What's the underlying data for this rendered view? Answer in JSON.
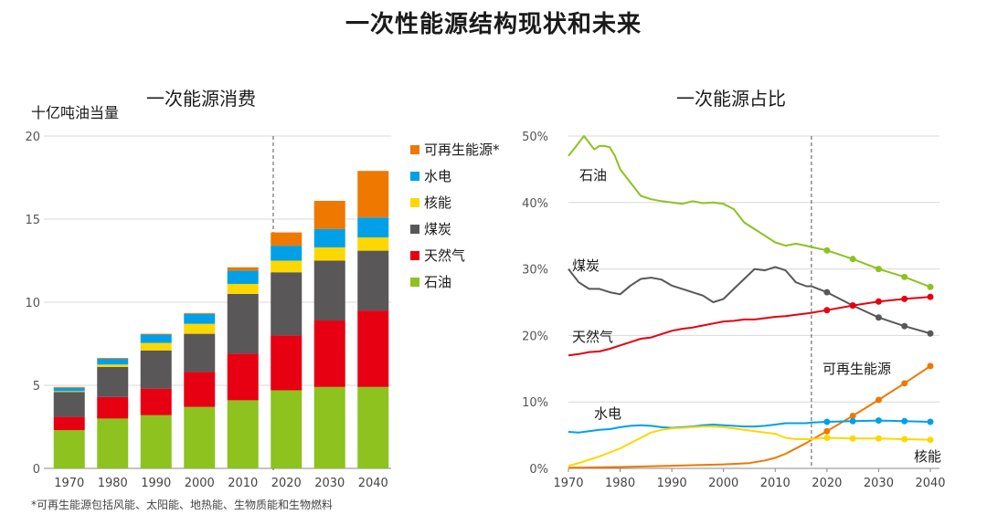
{
  "page": {
    "title": "一次性能源结构现状和未来"
  },
  "chart_data": [
    {
      "type": "bar",
      "stacked": true,
      "title": "一次能源消费",
      "ylabel": "十亿吨油当量",
      "ylim": [
        0,
        20
      ],
      "yticks": [
        "0",
        "5",
        "10",
        "15",
        "20"
      ],
      "categories": [
        "1970",
        "1980",
        "1990",
        "2000",
        "2010",
        "2020",
        "2030",
        "2040"
      ],
      "projection_start": "2017",
      "grid": true,
      "legend_position": "right",
      "footnote": "*可再生能源包括风能、太阳能、地热能、生物质能和生物燃料",
      "series": [
        {
          "name": "石油",
          "color": "#8dc21f",
          "values": [
            2.3,
            3.0,
            3.2,
            3.7,
            4.1,
            4.7,
            4.9,
            4.9
          ]
        },
        {
          "name": "天然气",
          "color": "#e60012",
          "values": [
            0.8,
            1.3,
            1.6,
            2.1,
            2.8,
            3.3,
            4.0,
            4.6
          ]
        },
        {
          "name": "煤炭",
          "color": "#595757",
          "values": [
            1.5,
            1.8,
            2.3,
            2.3,
            3.6,
            3.8,
            3.6,
            3.6
          ]
        },
        {
          "name": "核能",
          "color": "#fcd800",
          "values": [
            0.05,
            0.15,
            0.45,
            0.6,
            0.6,
            0.7,
            0.8,
            0.8
          ]
        },
        {
          "name": "水电",
          "color": "#00a0e9",
          "values": [
            0.2,
            0.35,
            0.5,
            0.6,
            0.8,
            0.9,
            1.1,
            1.2
          ]
        },
        {
          "name": "可再生能源*",
          "color": "#ee7800",
          "values": [
            0.05,
            0.05,
            0.05,
            0.05,
            0.2,
            0.8,
            1.7,
            2.8
          ]
        }
      ],
      "legend_order": [
        "可再生能源*",
        "水电",
        "核能",
        "煤炭",
        "天然气",
        "石油"
      ]
    },
    {
      "type": "line",
      "title": "一次能源占比",
      "ylim": [
        0,
        50
      ],
      "yticks": [
        "0%",
        "10%",
        "20%",
        "30%",
        "40%",
        "50%"
      ],
      "xticks": [
        "1970",
        "1980",
        "1990",
        "2000",
        "2010",
        "2020",
        "2030",
        "2040"
      ],
      "xlim": [
        1970,
        2040
      ],
      "projection_start": "2017",
      "grid": true,
      "marker_years": [
        2020,
        2025,
        2030,
        2035,
        2040
      ],
      "series": [
        {
          "name": "石油",
          "color": "#8dc21f",
          "label_pos": "left-top",
          "x": [
            1970,
            1971,
            1972,
            1973,
            1974,
            1975,
            1976,
            1977,
            1978,
            1979,
            1980,
            1982,
            1984,
            1986,
            1988,
            1990,
            1992,
            1994,
            1996,
            1998,
            2000,
            2002,
            2004,
            2006,
            2008,
            2010,
            2012,
            2014,
            2016,
            2017,
            2020,
            2025,
            2030,
            2035,
            2040
          ],
          "y": [
            47,
            48,
            49,
            50,
            49,
            48,
            48.5,
            48.5,
            48.3,
            47,
            45,
            43,
            41,
            40.5,
            40.2,
            40,
            39.8,
            40.2,
            39.9,
            40,
            39.8,
            39,
            37,
            36,
            35,
            34,
            33.5,
            33.8,
            33.5,
            33.3,
            32.8,
            31.5,
            30.0,
            28.8,
            27.3
          ]
        },
        {
          "name": "煤炭",
          "color": "#595757",
          "label_pos": "left-mid",
          "x": [
            1970,
            1972,
            1974,
            1976,
            1978,
            1980,
            1982,
            1984,
            1986,
            1988,
            1990,
            1992,
            1994,
            1996,
            1998,
            2000,
            2002,
            2004,
            2006,
            2008,
            2010,
            2012,
            2014,
            2016,
            2017,
            2020,
            2025,
            2030,
            2035,
            2040
          ],
          "y": [
            30,
            28,
            27,
            27,
            26.5,
            26.2,
            27.5,
            28.5,
            28.7,
            28.4,
            27.5,
            27,
            26.5,
            26,
            25,
            25.5,
            27,
            28.5,
            30,
            29.8,
            30.3,
            29.8,
            28,
            27.4,
            27.4,
            26.5,
            24.5,
            22.7,
            21.4,
            20.3
          ]
        },
        {
          "name": "天然气",
          "color": "#e60012",
          "label_pos": "left-low",
          "x": [
            1970,
            1972,
            1974,
            1976,
            1978,
            1980,
            1982,
            1984,
            1986,
            1988,
            1990,
            1992,
            1994,
            1996,
            1998,
            2000,
            2002,
            2004,
            2006,
            2008,
            2010,
            2012,
            2014,
            2016,
            2017,
            2020,
            2025,
            2030,
            2035,
            2040
          ],
          "y": [
            17,
            17.2,
            17.5,
            17.6,
            18,
            18.5,
            19,
            19.5,
            19.7,
            20.2,
            20.7,
            21,
            21.2,
            21.5,
            21.8,
            22.1,
            22.2,
            22.4,
            22.4,
            22.6,
            22.8,
            22.9,
            23.1,
            23.3,
            23.4,
            23.8,
            24.5,
            25.1,
            25.5,
            25.8
          ]
        },
        {
          "name": "可再生能源",
          "color": "#ee7800",
          "label_pos": "right-high",
          "x": [
            1970,
            1980,
            1990,
            2000,
            2005,
            2008,
            2010,
            2012,
            2014,
            2016,
            2017,
            2020,
            2025,
            2030,
            2035,
            2040
          ],
          "y": [
            0.1,
            0.2,
            0.4,
            0.6,
            0.8,
            1.2,
            1.6,
            2.2,
            3,
            3.8,
            4.3,
            5.6,
            7.9,
            10.3,
            12.8,
            15.4
          ]
        },
        {
          "name": "水电",
          "color": "#00a0e9",
          "label_pos": "left-high",
          "x": [
            1970,
            1972,
            1974,
            1976,
            1978,
            1980,
            1982,
            1984,
            1986,
            1988,
            1990,
            1992,
            1994,
            1996,
            1998,
            2000,
            2002,
            2004,
            2006,
            2008,
            2010,
            2012,
            2014,
            2016,
            2017,
            2020,
            2025,
            2030,
            2035,
            2040
          ],
          "y": [
            5.5,
            5.4,
            5.6,
            5.8,
            5.9,
            6.2,
            6.4,
            6.5,
            6.4,
            6.2,
            6.1,
            6.2,
            6.3,
            6.5,
            6.6,
            6.5,
            6.4,
            6.3,
            6.3,
            6.4,
            6.6,
            6.8,
            6.8,
            6.8,
            6.9,
            7.0,
            7.1,
            7.2,
            7.1,
            7.0
          ]
        },
        {
          "name": "核能",
          "color": "#fcd800",
          "label_pos": "right-low",
          "x": [
            1970,
            1972,
            1974,
            1976,
            1978,
            1980,
            1982,
            1984,
            1986,
            1988,
            1990,
            1992,
            1994,
            1996,
            1998,
            2000,
            2002,
            2004,
            2006,
            2008,
            2010,
            2012,
            2014,
            2016,
            2017,
            2020,
            2025,
            2030,
            2035,
            2040
          ],
          "y": [
            0.4,
            0.8,
            1.3,
            1.8,
            2.4,
            3.0,
            3.8,
            4.6,
            5.4,
            5.8,
            6.0,
            6.1,
            6.2,
            6.3,
            6.3,
            6.2,
            6.0,
            5.8,
            5.6,
            5.4,
            5.2,
            4.6,
            4.4,
            4.4,
            4.4,
            4.6,
            4.5,
            4.5,
            4.4,
            4.3
          ]
        }
      ]
    }
  ]
}
